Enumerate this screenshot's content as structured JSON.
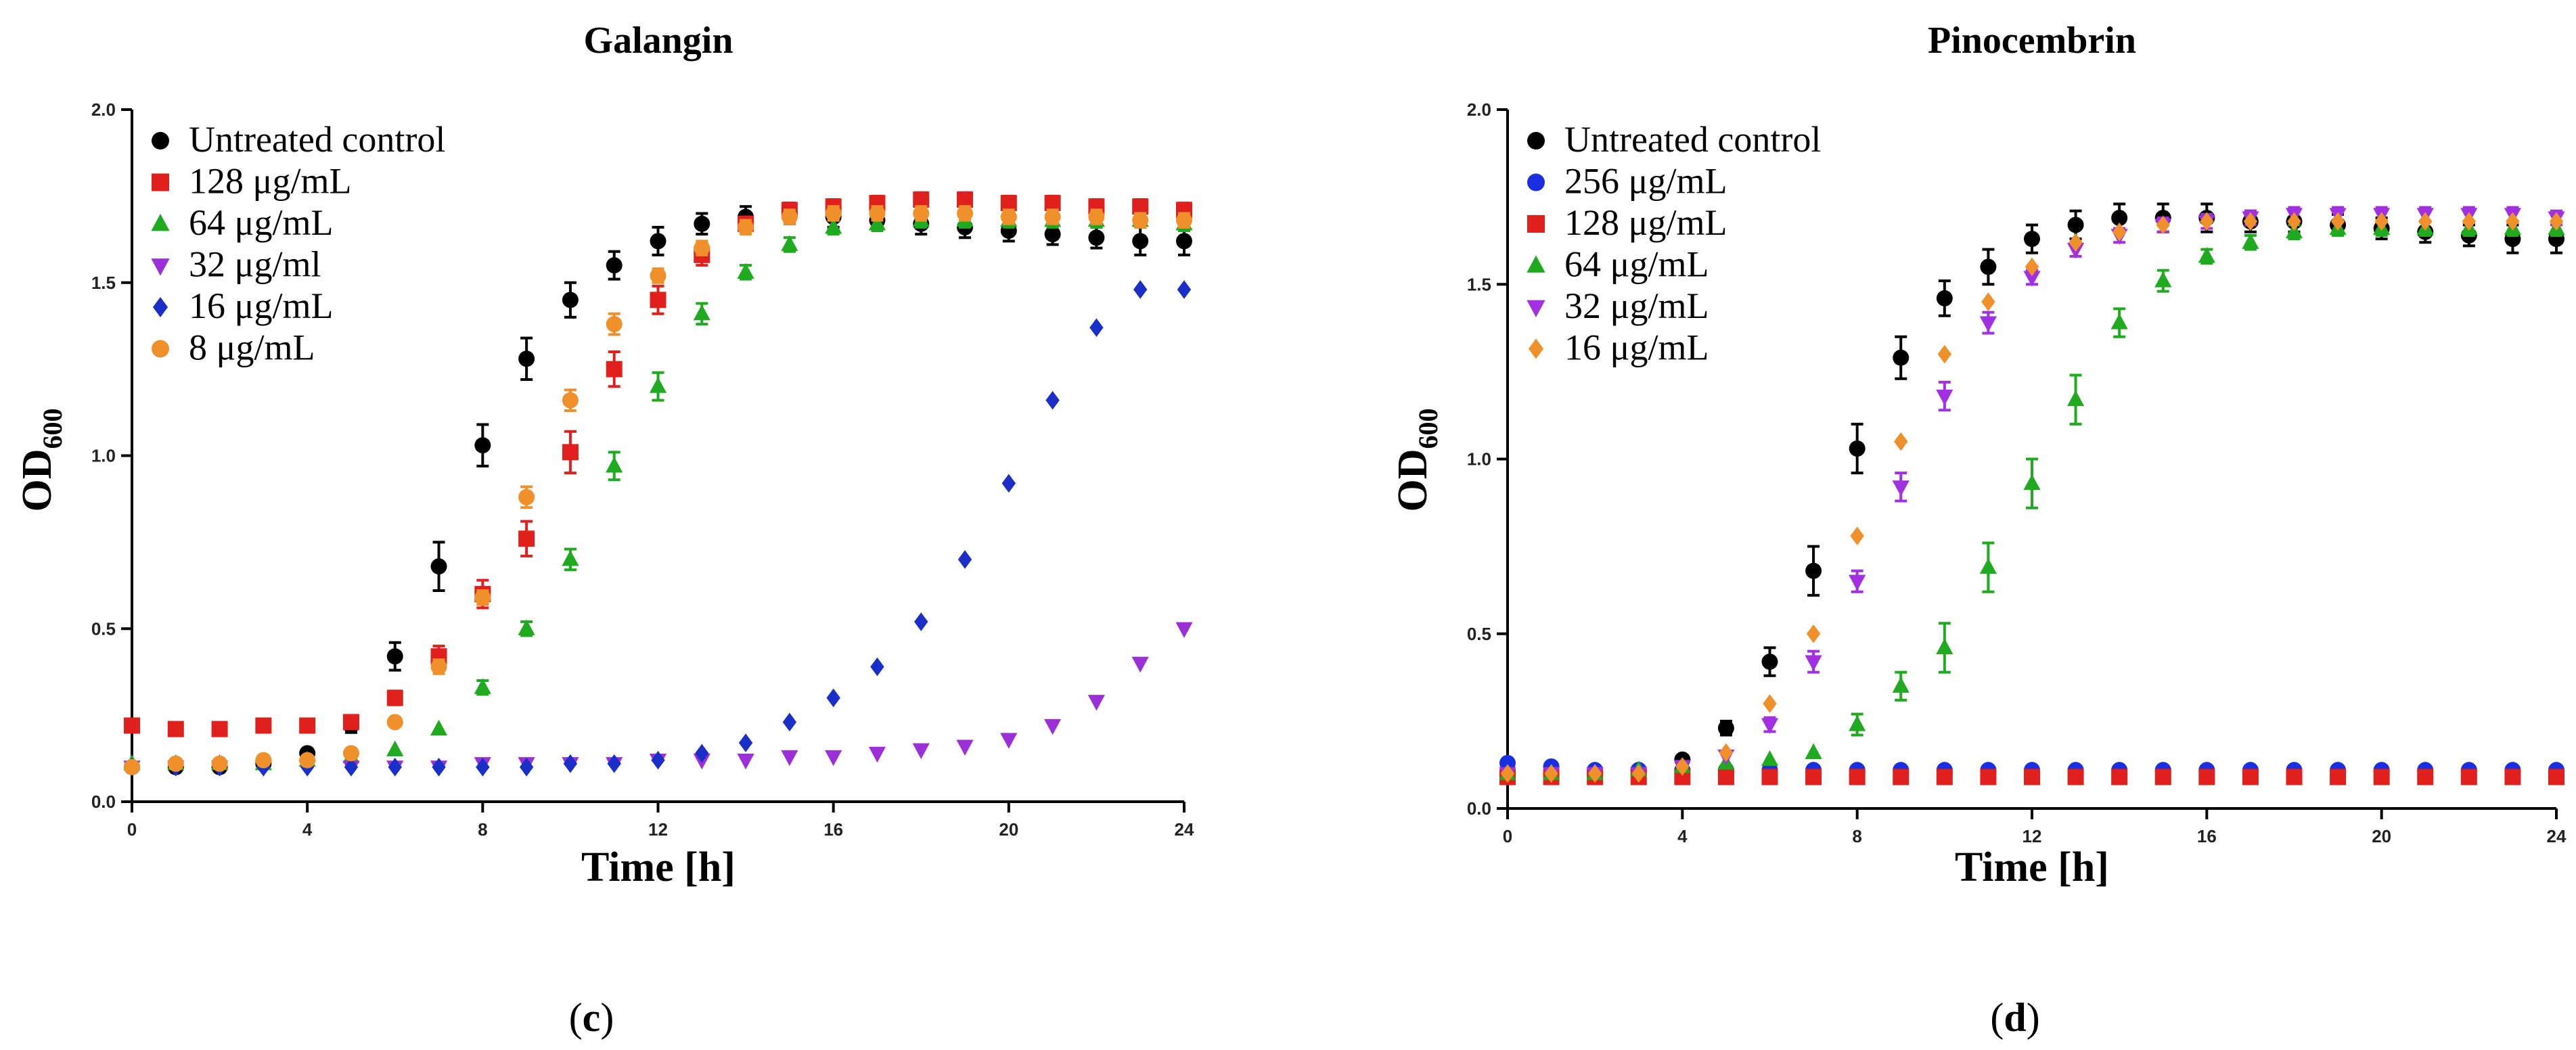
{
  "chart_data": [
    {
      "type": "scatter",
      "title": "Galangin",
      "panel_label": "c",
      "xlabel": "Time [h]",
      "ylabel": "OD",
      "ylabel_sub": "600",
      "xlim": [
        0,
        24
      ],
      "ylim": [
        0,
        2.0
      ],
      "xticks": [
        0,
        4,
        8,
        12,
        16,
        20,
        24
      ],
      "yticks": [
        0.0,
        0.5,
        1.0,
        1.5,
        2.0
      ],
      "ytick_labels": [
        "0.0",
        "0.5",
        "1.0",
        "1.5",
        "2.0"
      ],
      "legend_position": "top-left",
      "x": [
        0,
        1,
        2,
        3,
        4,
        5,
        6,
        7,
        8,
        9,
        10,
        11,
        12,
        13,
        14,
        15,
        16,
        17,
        18,
        19,
        20,
        21,
        22,
        23,
        24
      ],
      "series": [
        {
          "name": "Untreated control",
          "color": "#000000",
          "marker": "circle",
          "values": [
            0.1,
            0.1,
            0.1,
            0.11,
            0.14,
            0.22,
            0.42,
            0.68,
            1.03,
            1.28,
            1.45,
            1.55,
            1.62,
            1.67,
            1.69,
            1.7,
            1.69,
            1.68,
            1.67,
            1.66,
            1.65,
            1.64,
            1.63,
            1.62,
            1.62
          ],
          "errors": [
            0.01,
            0.01,
            0.01,
            0.01,
            0.01,
            0.02,
            0.04,
            0.07,
            0.06,
            0.06,
            0.05,
            0.04,
            0.04,
            0.03,
            0.03,
            0.03,
            0.03,
            0.03,
            0.03,
            0.03,
            0.03,
            0.03,
            0.03,
            0.04,
            0.04
          ]
        },
        {
          "name": "128 μg/mL",
          "color": "#e0201c",
          "marker": "square",
          "values": [
            0.22,
            0.21,
            0.21,
            0.22,
            0.22,
            0.23,
            0.3,
            0.42,
            0.6,
            0.76,
            1.01,
            1.25,
            1.45,
            1.58,
            1.67,
            1.71,
            1.72,
            1.73,
            1.74,
            1.74,
            1.73,
            1.73,
            1.72,
            1.72,
            1.71
          ],
          "errors": [
            0.01,
            0.01,
            0.01,
            0.01,
            0.01,
            0.01,
            0.02,
            0.03,
            0.04,
            0.05,
            0.06,
            0.05,
            0.04,
            0.03,
            0.02,
            0.02,
            0.02,
            0.02,
            0.02,
            0.02,
            0.02,
            0.02,
            0.02,
            0.02,
            0.02
          ]
        },
        {
          "name": "64 μg/mL",
          "color": "#1faa1f",
          "marker": "triangle-up",
          "values": [
            0.11,
            0.11,
            0.11,
            0.11,
            0.12,
            0.13,
            0.15,
            0.21,
            0.33,
            0.5,
            0.7,
            0.97,
            1.2,
            1.41,
            1.53,
            1.61,
            1.66,
            1.67,
            1.68,
            1.68,
            1.68,
            1.68,
            1.68,
            1.68,
            1.67
          ],
          "errors": [
            0.01,
            0.01,
            0.01,
            0.01,
            0.01,
            0.01,
            0.01,
            0.01,
            0.02,
            0.02,
            0.03,
            0.04,
            0.04,
            0.03,
            0.02,
            0.02,
            0.02,
            0.02,
            0.02,
            0.02,
            0.02,
            0.02,
            0.02,
            0.02,
            0.02
          ]
        },
        {
          "name": "32 μg/ml",
          "color": "#9b30d9",
          "marker": "triangle-down",
          "values": [
            0.1,
            0.1,
            0.1,
            0.1,
            0.1,
            0.1,
            0.1,
            0.1,
            0.11,
            0.11,
            0.11,
            0.11,
            0.12,
            0.12,
            0.12,
            0.13,
            0.13,
            0.14,
            0.15,
            0.16,
            0.18,
            0.22,
            0.29,
            0.4,
            0.5
          ],
          "errors": [
            0,
            0,
            0,
            0,
            0,
            0,
            0,
            0,
            0,
            0,
            0,
            0,
            0,
            0,
            0,
            0,
            0,
            0,
            0,
            0,
            0,
            0,
            0,
            0,
            0
          ]
        },
        {
          "name": "16 μg/mL",
          "color": "#1a2fc8",
          "marker": "diamond",
          "values": [
            0.1,
            0.1,
            0.1,
            0.1,
            0.1,
            0.1,
            0.1,
            0.1,
            0.1,
            0.1,
            0.11,
            0.11,
            0.12,
            0.14,
            0.17,
            0.23,
            0.3,
            0.39,
            0.52,
            0.7,
            0.92,
            1.16,
            1.37,
            1.48,
            1.48
          ],
          "errors": [
            0,
            0,
            0,
            0,
            0,
            0,
            0,
            0,
            0,
            0,
            0,
            0,
            0,
            0,
            0,
            0,
            0,
            0,
            0,
            0,
            0,
            0,
            0,
            0,
            0
          ]
        },
        {
          "name": "8 μg/mL",
          "color": "#f0902a",
          "marker": "circle",
          "values": [
            0.1,
            0.11,
            0.11,
            0.12,
            0.12,
            0.14,
            0.23,
            0.39,
            0.59,
            0.88,
            1.16,
            1.38,
            1.52,
            1.6,
            1.66,
            1.69,
            1.7,
            1.7,
            1.7,
            1.7,
            1.69,
            1.69,
            1.69,
            1.68,
            1.68
          ],
          "errors": [
            0.01,
            0.01,
            0.01,
            0.01,
            0.01,
            0.01,
            0.01,
            0.02,
            0.02,
            0.03,
            0.03,
            0.03,
            0.02,
            0.02,
            0.02,
            0.02,
            0.02,
            0.02,
            0.02,
            0.02,
            0.02,
            0.02,
            0.02,
            0.02,
            0.02
          ]
        }
      ]
    },
    {
      "type": "scatter",
      "title": "Pinocembrin",
      "panel_label": "d",
      "xlabel": "Time [h]",
      "ylabel": "OD",
      "ylabel_sub": "600",
      "xlim": [
        0,
        24
      ],
      "ylim": [
        0,
        2.0
      ],
      "xticks": [
        0,
        4,
        8,
        12,
        16,
        20,
        24
      ],
      "yticks": [
        0.0,
        0.5,
        1.0,
        1.5,
        2.0
      ],
      "ytick_labels": [
        "0.0",
        "0.5",
        "1.0",
        "1.5",
        "2.0"
      ],
      "legend_position": "top-left",
      "x": [
        0,
        1,
        2,
        3,
        4,
        5,
        6,
        7,
        8,
        9,
        10,
        11,
        12,
        13,
        14,
        15,
        16,
        17,
        18,
        19,
        20,
        21,
        22,
        23,
        24
      ],
      "series": [
        {
          "name": "Untreated control",
          "color": "#000000",
          "marker": "circle",
          "values": [
            0.1,
            0.1,
            0.1,
            0.11,
            0.14,
            0.23,
            0.42,
            0.68,
            1.03,
            1.29,
            1.46,
            1.55,
            1.63,
            1.67,
            1.69,
            1.69,
            1.69,
            1.68,
            1.68,
            1.67,
            1.66,
            1.65,
            1.64,
            1.63,
            1.63
          ],
          "errors": [
            0.01,
            0.01,
            0.01,
            0.01,
            0.01,
            0.02,
            0.04,
            0.07,
            0.07,
            0.06,
            0.05,
            0.05,
            0.04,
            0.04,
            0.04,
            0.04,
            0.04,
            0.03,
            0.03,
            0.03,
            0.03,
            0.03,
            0.03,
            0.04,
            0.04
          ]
        },
        {
          "name": "256 μg/mL",
          "color": "#1a2fe0",
          "marker": "circle",
          "values": [
            0.13,
            0.12,
            0.11,
            0.11,
            0.11,
            0.11,
            0.11,
            0.11,
            0.11,
            0.11,
            0.11,
            0.11,
            0.11,
            0.11,
            0.11,
            0.11,
            0.11,
            0.11,
            0.11,
            0.11,
            0.11,
            0.11,
            0.11,
            0.11,
            0.11
          ],
          "errors": [
            0,
            0,
            0,
            0,
            0,
            0,
            0,
            0,
            0,
            0,
            0,
            0,
            0,
            0,
            0,
            0,
            0,
            0,
            0,
            0,
            0,
            0,
            0,
            0,
            0
          ]
        },
        {
          "name": "128 μg/mL",
          "color": "#e0201c",
          "marker": "square",
          "values": [
            0.09,
            0.09,
            0.09,
            0.09,
            0.09,
            0.09,
            0.09,
            0.09,
            0.09,
            0.09,
            0.09,
            0.09,
            0.09,
            0.09,
            0.09,
            0.09,
            0.09,
            0.09,
            0.09,
            0.09,
            0.09,
            0.09,
            0.09,
            0.09,
            0.09
          ],
          "errors": [
            0,
            0,
            0,
            0,
            0,
            0,
            0,
            0,
            0,
            0,
            0,
            0,
            0,
            0,
            0,
            0,
            0,
            0,
            0,
            0,
            0,
            0,
            0,
            0,
            0
          ]
        },
        {
          "name": "64 μg/mL",
          "color": "#1faa1f",
          "marker": "triangle-up",
          "values": [
            0.1,
            0.1,
            0.1,
            0.11,
            0.12,
            0.13,
            0.14,
            0.16,
            0.24,
            0.35,
            0.46,
            0.69,
            0.93,
            1.17,
            1.39,
            1.51,
            1.58,
            1.62,
            1.65,
            1.66,
            1.66,
            1.66,
            1.66,
            1.66,
            1.66
          ],
          "errors": [
            0.01,
            0.01,
            0.01,
            0.01,
            0.01,
            0.01,
            0.01,
            0.01,
            0.03,
            0.04,
            0.07,
            0.07,
            0.07,
            0.07,
            0.04,
            0.03,
            0.02,
            0.02,
            0.02,
            0.02,
            0.02,
            0.02,
            0.02,
            0.02,
            0.02
          ]
        },
        {
          "name": "32 μg/mL",
          "color": "#a030e0",
          "marker": "triangle-down",
          "values": [
            0.1,
            0.1,
            0.1,
            0.1,
            0.12,
            0.15,
            0.24,
            0.42,
            0.65,
            0.92,
            1.18,
            1.39,
            1.52,
            1.6,
            1.64,
            1.67,
            1.68,
            1.69,
            1.7,
            1.7,
            1.7,
            1.7,
            1.7,
            1.7,
            1.69
          ],
          "errors": [
            0.01,
            0.01,
            0.01,
            0.01,
            0.01,
            0.01,
            0.02,
            0.03,
            0.03,
            0.04,
            0.04,
            0.03,
            0.02,
            0.02,
            0.02,
            0.02,
            0.02,
            0.02,
            0.02,
            0.02,
            0.02,
            0.02,
            0.02,
            0.02,
            0.02
          ]
        },
        {
          "name": "16 μg/mL",
          "color": "#f0902a",
          "marker": "diamond",
          "values": [
            0.1,
            0.1,
            0.1,
            0.1,
            0.12,
            0.16,
            0.3,
            0.5,
            0.78,
            1.05,
            1.3,
            1.45,
            1.55,
            1.62,
            1.65,
            1.67,
            1.68,
            1.68,
            1.68,
            1.68,
            1.68,
            1.68,
            1.68,
            1.68,
            1.68
          ],
          "errors": [
            0,
            0,
            0,
            0,
            0,
            0,
            0,
            0,
            0,
            0,
            0,
            0,
            0,
            0,
            0,
            0,
            0,
            0,
            0,
            0,
            0,
            0,
            0,
            0,
            0
          ]
        }
      ]
    }
  ]
}
